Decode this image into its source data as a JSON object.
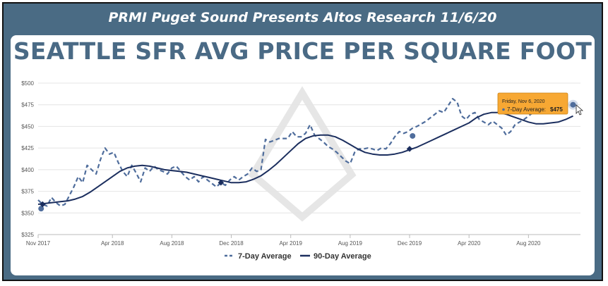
{
  "banner": {
    "title": "PRMI Puget Sound Presents Altos Research 11/6/20"
  },
  "headline": "SEATTLE SFR AVG PRICE PER SQUARE FOOT",
  "colors": {
    "frame": "#4a6b84",
    "title": "#4a6a85",
    "series_7day": "#4f6d9c",
    "series_90day": "#1b2e5e",
    "tooltip": "#f7a833"
  },
  "tooltip": {
    "date": "Friday, Nov 6, 2020",
    "label": "7-Day Average:",
    "value": "$475"
  },
  "chart_data": {
    "type": "line",
    "title": "",
    "xlabel": "",
    "ylabel": "",
    "ylim": [
      325,
      500
    ],
    "xlim": [
      0,
      36.5
    ],
    "x_unit": "months since Nov 2017",
    "yticks": [
      "$325",
      "$350",
      "$375",
      "$400",
      "$425",
      "$450",
      "$475",
      "$500"
    ],
    "xticks": [
      {
        "label": "Nov 2017",
        "x": 0
      },
      {
        "label": "Apr 2018",
        "x": 5
      },
      {
        "label": "Aug 2018",
        "x": 9
      },
      {
        "label": "Dec 2018",
        "x": 13
      },
      {
        "label": "Apr 2019",
        "x": 17
      },
      {
        "label": "Aug 2019",
        "x": 21
      },
      {
        "label": "Dec 2019",
        "x": 25
      },
      {
        "label": "Apr 2020",
        "x": 29
      },
      {
        "label": "Aug 2020",
        "x": 33
      }
    ],
    "grid": true,
    "legend": "bottom-center",
    "series": [
      {
        "name": "7-Day Average",
        "style": "dashed",
        "x": [
          0,
          0.3,
          0.6,
          0.9,
          1.2,
          1.5,
          1.8,
          2.1,
          2.4,
          2.7,
          3.0,
          3.3,
          3.6,
          3.9,
          4.2,
          4.5,
          4.8,
          5.1,
          5.4,
          5.7,
          6.0,
          6.3,
          6.6,
          6.9,
          7.2,
          7.5,
          7.8,
          8.1,
          8.4,
          8.7,
          9.0,
          9.3,
          9.6,
          9.9,
          10.2,
          10.5,
          10.8,
          11.1,
          11.4,
          11.7,
          12.0,
          12.3,
          12.6,
          12.9,
          13.2,
          13.5,
          13.8,
          14.1,
          14.4,
          14.7,
          15.0,
          15.3,
          15.6,
          15.9,
          16.2,
          16.5,
          16.8,
          17.1,
          17.4,
          17.7,
          18.0,
          18.3,
          18.6,
          18.9,
          19.2,
          19.5,
          19.8,
          20.1,
          20.4,
          20.7,
          21.0,
          21.3,
          21.6,
          21.9,
          22.2,
          22.5,
          22.8,
          23.1,
          23.4,
          23.7,
          24.0,
          24.3,
          24.6,
          24.9,
          25.2,
          25.5,
          25.8,
          26.1,
          26.4,
          26.7,
          27.0,
          27.3,
          27.6,
          27.9,
          28.2,
          28.5,
          28.8,
          29.1,
          29.4,
          29.7,
          30.0,
          30.3,
          30.6,
          30.9,
          31.2,
          31.5,
          31.8,
          32.1,
          32.4,
          32.7,
          33.0,
          33.3,
          33.6,
          33.9,
          34.2,
          34.5,
          34.8,
          35.1,
          35.4,
          35.7,
          36.0
        ],
        "values": [
          365,
          360,
          358,
          368,
          362,
          358,
          360,
          370,
          380,
          392,
          385,
          405,
          400,
          395,
          412,
          425,
          418,
          420,
          408,
          398,
          392,
          405,
          396,
          386,
          402,
          398,
          404,
          400,
          398,
          395,
          402,
          404,
          398,
          392,
          388,
          392,
          386,
          392,
          388,
          384,
          380,
          385,
          382,
          388,
          392,
          388,
          392,
          395,
          402,
          398,
          400,
          435,
          432,
          434,
          436,
          436,
          436,
          444,
          438,
          438,
          442,
          452,
          440,
          436,
          432,
          427,
          424,
          420,
          415,
          410,
          407,
          420,
          424,
          424,
          425,
          424,
          422,
          425,
          424,
          430,
          438,
          444,
          442,
          444,
          448,
          450,
          453,
          456,
          460,
          464,
          468,
          466,
          474,
          482,
          478,
          462,
          458,
          464,
          466,
          458,
          455,
          452,
          456,
          452,
          448,
          440,
          444,
          452,
          455,
          458,
          462,
          466,
          465,
          466,
          468,
          470,
          472,
          474,
          474,
          474,
          475
        ]
      },
      {
        "name": "90-Day Average",
        "style": "solid",
        "x": [
          0,
          0.5,
          1.0,
          1.5,
          2.0,
          2.5,
          3.0,
          3.5,
          4.0,
          4.5,
          5.0,
          5.5,
          6.0,
          6.5,
          7.0,
          7.5,
          8.0,
          8.5,
          9.0,
          9.5,
          10.0,
          10.5,
          11.0,
          11.5,
          12.0,
          12.5,
          13.0,
          13.5,
          14.0,
          14.5,
          15.0,
          15.5,
          16.0,
          16.5,
          17.0,
          17.5,
          18.0,
          18.5,
          19.0,
          19.5,
          20.0,
          20.5,
          21.0,
          21.5,
          22.0,
          22.5,
          23.0,
          23.5,
          24.0,
          24.5,
          25.0,
          25.5,
          26.0,
          26.5,
          27.0,
          27.5,
          28.0,
          28.5,
          29.0,
          29.5,
          30.0,
          30.5,
          31.0,
          31.5,
          32.0,
          32.5,
          33.0,
          33.5,
          34.0,
          34.5,
          35.0,
          35.5,
          36.0
        ],
        "values": [
          360,
          361,
          362,
          363,
          364,
          366,
          369,
          374,
          380,
          386,
          392,
          398,
          402,
          404,
          405,
          404,
          402,
          400,
          399,
          398,
          397,
          395,
          393,
          391,
          389,
          387,
          385,
          385,
          386,
          389,
          393,
          399,
          406,
          414,
          422,
          430,
          436,
          439,
          440,
          440,
          438,
          434,
          429,
          424,
          420,
          418,
          417,
          417,
          418,
          420,
          423,
          426,
          430,
          434,
          438,
          442,
          446,
          450,
          454,
          460,
          464,
          466,
          466,
          464,
          461,
          458,
          455,
          453,
          453,
          454,
          455,
          458,
          462
        ]
      }
    ],
    "markers": [
      {
        "series": "7-Day Average",
        "x": 0.2,
        "y": 355
      },
      {
        "series": "90-Day Average",
        "x": 0.3,
        "y": 360
      },
      {
        "series": "90-Day Average",
        "x": 12.3,
        "y": 385
      },
      {
        "series": "7-Day Average",
        "x": 25.2,
        "y": 439
      },
      {
        "series": "90-Day Average",
        "x": 25.0,
        "y": 424
      },
      {
        "series": "7-Day Average",
        "x": 36.0,
        "y": 475
      }
    ]
  },
  "legend": {
    "items": [
      "7-Day Average",
      "90-Day Average"
    ]
  }
}
